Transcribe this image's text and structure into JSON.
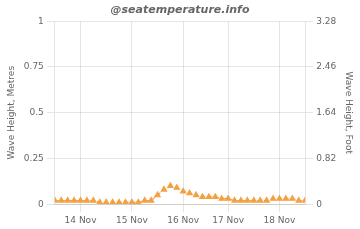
{
  "chart_data": {
    "type": "line",
    "title": "@seatemperature.info",
    "ylabel": "Wave Height, Metres",
    "y2label": "Wave Height, Foot",
    "categories": [
      null,
      null,
      null,
      null,
      "14 Nov",
      null,
      null,
      null,
      null,
      null,
      null,
      null,
      "15 Nov",
      null,
      null,
      null,
      null,
      null,
      null,
      null,
      "16 Nov",
      null,
      null,
      null,
      null,
      null,
      null,
      "17 Nov",
      null,
      null,
      null,
      null,
      null,
      null,
      null,
      "18 Nov",
      null,
      null,
      null,
      null
    ],
    "values": [
      0.02,
      0.02,
      0.02,
      0.02,
      0.02,
      0.02,
      0.02,
      0.01,
      0.01,
      0.01,
      0.01,
      0.01,
      0.01,
      0.01,
      0.02,
      0.02,
      0.05,
      0.08,
      0.1,
      0.09,
      0.07,
      0.06,
      0.05,
      0.04,
      0.04,
      0.04,
      0.03,
      0.03,
      0.02,
      0.02,
      0.02,
      0.02,
      0.02,
      0.02,
      0.03,
      0.03,
      0.03,
      0.03,
      0.02,
      0.02
    ],
    "color": "#f5a040",
    "marker": "triangle",
    "line_style": "dashed",
    "ylim": [
      0,
      1
    ],
    "yticks": [
      0,
      0.25,
      0.5,
      0.75,
      1
    ],
    "y2lim": [
      0,
      3.28
    ],
    "y2ticks": [
      0,
      0.82,
      1.64,
      2.46,
      3.28
    ],
    "grid": true
  }
}
